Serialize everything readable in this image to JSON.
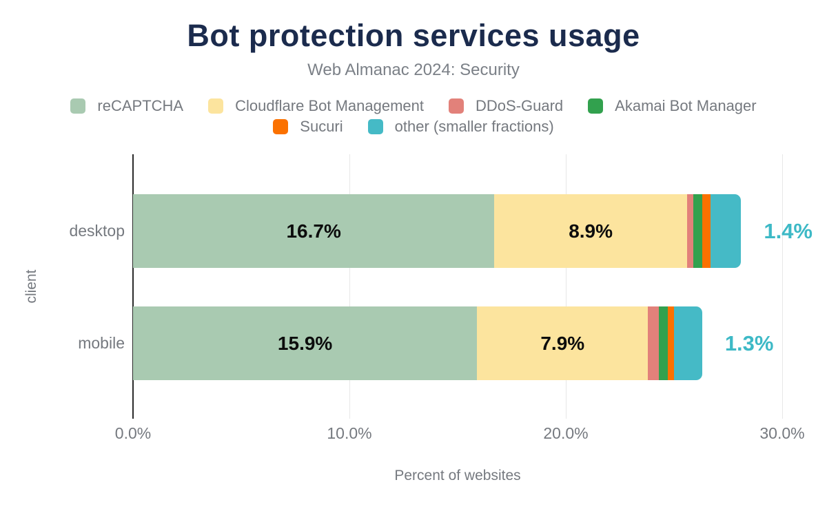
{
  "chart_data": {
    "type": "bar",
    "variant": "horizontal-stacked",
    "title": "Bot protection services usage",
    "subtitle": "Web Almanac 2024: Security",
    "categories": [
      "desktop",
      "mobile"
    ],
    "series": [
      {
        "name": "reCAPTCHA",
        "color": "#a9cab1",
        "values": [
          16.7,
          15.9
        ],
        "labels": [
          "16.7%",
          "15.9%"
        ],
        "label_mode": "inside"
      },
      {
        "name": "Cloudflare Bot Management",
        "color": "#fce49e",
        "values": [
          8.9,
          7.9
        ],
        "labels": [
          "8.9%",
          "7.9%"
        ],
        "label_mode": "inside"
      },
      {
        "name": "DDoS-Guard",
        "color": "#e2817a",
        "values": [
          0.3,
          0.5
        ],
        "labels": [
          null,
          null
        ],
        "label_mode": "none"
      },
      {
        "name": "Akamai Bot Manager",
        "color": "#32a14e",
        "values": [
          0.4,
          0.4
        ],
        "labels": [
          null,
          null
        ],
        "label_mode": "none"
      },
      {
        "name": "Sucuri",
        "color": "#fb7100",
        "values": [
          0.4,
          0.3
        ],
        "labels": [
          null,
          null
        ],
        "label_mode": "none"
      },
      {
        "name": "other (smaller fractions)",
        "color": "#45bac6",
        "values": [
          1.4,
          1.3
        ],
        "labels": [
          "1.4%",
          "1.3%"
        ],
        "label_mode": "outside"
      }
    ],
    "xlabel": "Percent of websites",
    "ylabel": "client",
    "xlim": [
      0,
      30
    ],
    "x_ticks": [
      {
        "value": 0,
        "label": "0.0%"
      },
      {
        "value": 10,
        "label": "10.0%"
      },
      {
        "value": 20,
        "label": "20.0%"
      },
      {
        "value": 30,
        "label": "30.0%"
      }
    ],
    "grid": true,
    "legend_position": "top",
    "legend_rows": [
      [
        "reCAPTCHA",
        "Cloudflare Bot Management",
        "DDoS-Guard",
        "Akamai Bot Manager"
      ],
      [
        "Sucuri",
        "other (smaller fractions)"
      ]
    ],
    "colors": {
      "title": "#1b2b4d",
      "text_gray": "#75797f",
      "inside_label": "#0c0c0c",
      "outside_label": "#3db9c6",
      "axis": "#2a2a2a",
      "grid": "#e7e7e7",
      "background": "#ffffff"
    }
  }
}
